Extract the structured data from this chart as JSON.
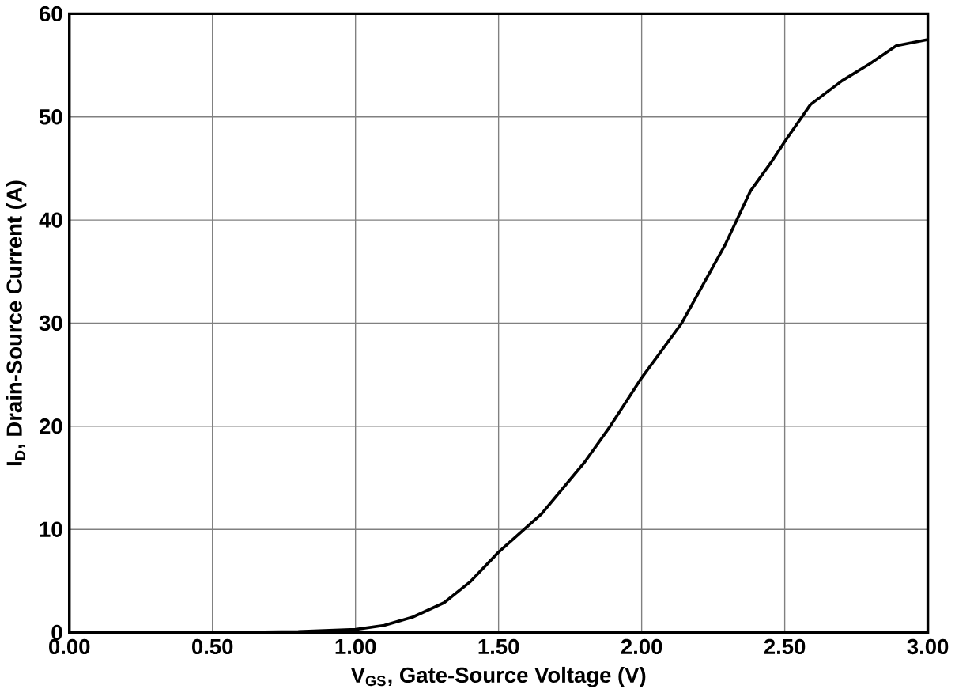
{
  "chart_data": {
    "type": "line",
    "xlabel": "V$_{GS}$, Gate-Source Voltage (V)",
    "ylabel": "I$_{D}$, Drain-Source Current (A)",
    "x": [
      0,
      0.5,
      0.8,
      1.0,
      1.1,
      1.2,
      1.31,
      1.4,
      1.5,
      1.65,
      1.8,
      1.89,
      2.0,
      2.14,
      2.19,
      2.27,
      2.29,
      2.38,
      2.45,
      2.5,
      2.59,
      2.7,
      2.8,
      2.89,
      3.0
    ],
    "series": [
      {
        "color": "#000000",
        "values": [
          0,
          0,
          0.1,
          0.3,
          0.7,
          1.5,
          2.9,
          4.9,
          7.8,
          11.5,
          16.5,
          20,
          24.7,
          30,
          32.5,
          36.5,
          37.5,
          42.8,
          45.5,
          47.6,
          51.2,
          53.5,
          55.2,
          56.9,
          57.5
        ]
      }
    ],
    "xlim": [
      0,
      3
    ],
    "ylim": [
      0,
      60
    ],
    "xticks": [
      {
        "value": 0,
        "label": "0.00"
      },
      {
        "value": 0.5,
        "label": "0.50"
      },
      {
        "value": 1,
        "label": "1.00"
      },
      {
        "value": 1.5,
        "label": "1.50"
      },
      {
        "value": 2,
        "label": "2.00"
      },
      {
        "value": 2.5,
        "label": "2.50"
      },
      {
        "value": 3,
        "label": "3.00"
      }
    ],
    "yticks": [
      0,
      10,
      20,
      30,
      40,
      50,
      60
    ],
    "grid": true,
    "marker": "none",
    "line_style": "solid"
  }
}
